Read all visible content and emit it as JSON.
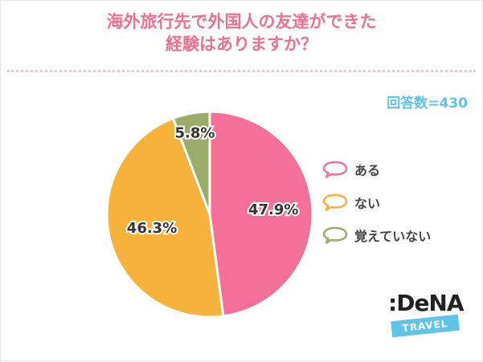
{
  "title": {
    "line1": "海外旅行先で外国人の友達ができた",
    "line2": "経験はありますか？"
  },
  "respondents": "回答数=430",
  "logo": {
    "main": ":DeNA",
    "band": "TRAVEL"
  },
  "chart_data": {
    "type": "pie",
    "series": [
      {
        "name": "ある",
        "value": 47.9,
        "label": "47.9%",
        "color": "#f47099"
      },
      {
        "name": "ない",
        "value": 46.3,
        "label": "46.3%",
        "color": "#f6b23a"
      },
      {
        "name": "覚えていない",
        "value": 5.8,
        "label": "5.8%",
        "color": "#9aab6a"
      }
    ],
    "start": "12 o'clock",
    "direction": "clockwise",
    "legend_position": "right"
  }
}
